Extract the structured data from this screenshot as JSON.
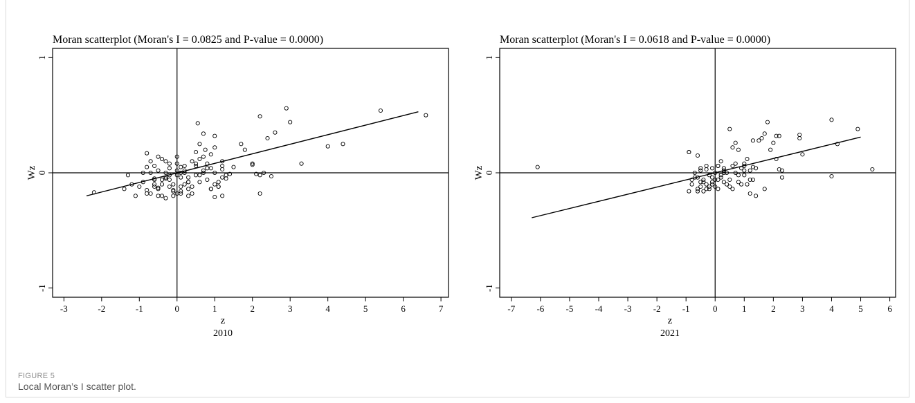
{
  "figure": {
    "label": "FIGURE 5",
    "caption": "Local Moran’s I scatter plot."
  },
  "chart_data": [
    {
      "type": "scatter",
      "title": "Moran scatterplot (Moran's I = 0.0825 and P-value = 0.0000)",
      "xlabel": "z",
      "ylabel": "Wz",
      "subtitle": "2010",
      "xlim": [
        -3.3,
        7.2
      ],
      "ylim": [
        -1.08,
        1.08
      ],
      "xticks": [
        -3,
        -2,
        -1,
        0,
        1,
        2,
        3,
        4,
        5,
        6,
        7
      ],
      "yticks": [
        -1,
        0,
        1
      ],
      "grid": false,
      "fit_line": {
        "x": [
          -2.4,
          6.4
        ],
        "y": [
          -0.2,
          0.53
        ]
      },
      "x": [
        -2.2,
        -1.4,
        -1.3,
        -1.2,
        -1.1,
        -1.0,
        -0.9,
        -0.8,
        -0.8,
        -0.7,
        -0.6,
        -0.5,
        -0.5,
        -0.4,
        -0.3,
        -0.2,
        -0.1,
        0.0,
        0.0,
        0.1,
        0.2,
        0.3,
        0.4,
        0.5,
        0.6,
        0.7,
        0.8,
        0.9,
        1.0,
        1.1,
        1.2,
        1.3,
        1.4,
        -0.9,
        -0.7,
        -0.6,
        -0.4,
        -0.3,
        -0.2,
        -0.1,
        0.0,
        0.1,
        0.2,
        0.3,
        0.4,
        0.5,
        0.6,
        -0.6,
        -0.5,
        -0.3,
        -0.2,
        -0.1,
        0.1,
        0.2,
        0.3,
        -0.8,
        -0.6,
        -0.4,
        -0.2,
        0.0,
        0.2,
        0.4,
        0.6,
        0.8,
        1.0,
        1.2,
        -0.5,
        -0.4,
        -0.2,
        0.0,
        0.1,
        0.3,
        0.5,
        0.7,
        0.9,
        1.1,
        1.3,
        -0.6,
        -0.3,
        -0.1,
        0.1,
        0.3,
        0.5,
        0.7,
        0.9,
        0.55,
        0.6,
        0.7,
        0.75,
        1.0,
        1.0,
        1.2,
        1.7,
        1.8,
        2.0,
        2.0,
        2.1,
        2.2,
        2.3,
        2.4,
        2.5,
        2.2,
        2.6,
        2.9,
        3.0,
        3.3,
        4.0,
        4.4,
        5.4,
        6.6,
        2.2,
        1.5,
        1.2,
        0.9,
        1.0,
        -0.8,
        -0.7,
        -0.5,
        -0.3,
        0.1,
        0.8,
        1.1,
        1.2
      ],
      "y": [
        -0.17,
        -0.14,
        -0.02,
        -0.1,
        -0.2,
        -0.12,
        -0.08,
        -0.15,
        0.05,
        -0.18,
        -0.05,
        -0.2,
        0.02,
        -0.1,
        -0.22,
        -0.06,
        -0.15,
        -0.02,
        -0.18,
        0.05,
        -0.1,
        -0.04,
        -0.12,
        0.08,
        -0.08,
        0.02,
        -0.06,
        -0.14,
        0.0,
        -0.12,
        0.06,
        -0.05,
        -0.01,
        0.0,
        0.1,
        -0.06,
        0.12,
        0.0,
        0.08,
        -0.16,
        0.02,
        -0.12,
        0.06,
        -0.08,
        0.1,
        -0.02,
        0.12,
        -0.1,
        -0.14,
        -0.04,
        0.04,
        -0.1,
        -0.18,
        0.02,
        -0.14,
        -0.18,
        -0.12,
        -0.06,
        -0.02,
        0.08,
        0.0,
        -0.18,
        -0.02,
        0.04,
        -0.1,
        -0.04,
        0.14,
        -0.2,
        -0.12,
        0.14,
        -0.04,
        -0.08,
        0.06,
        0.0,
        0.16,
        -0.08,
        -0.02,
        0.06,
        0.1,
        -0.2,
        -0.16,
        -0.2,
        0.18,
        0.14,
        0.04,
        0.43,
        0.25,
        0.34,
        0.2,
        0.32,
        0.22,
        0.1,
        0.25,
        0.2,
        0.07,
        0.08,
        -0.01,
        0.49,
        0.0,
        0.3,
        -0.03,
        -0.18,
        0.35,
        0.56,
        0.44,
        0.08,
        0.23,
        0.25,
        0.54,
        0.5,
        -0.02,
        0.05,
        -0.2,
        -0.14,
        -0.21,
        0.17,
        0.0,
        -0.13,
        -0.05,
        0.0,
        0.08,
        -0.12,
        0.03
      ]
    },
    {
      "type": "scatter",
      "title": "Moran scatterplot (Moran's I = 0.0618 and P-value = 0.0000)",
      "xlabel": "z",
      "ylabel": "Wz",
      "subtitle": "2021",
      "xlim": [
        -7.4,
        6.2
      ],
      "ylim": [
        -1.08,
        1.08
      ],
      "xticks": [
        -7,
        -6,
        -5,
        -4,
        -3,
        -2,
        -1,
        0,
        1,
        2,
        3,
        4,
        5,
        6
      ],
      "yticks": [
        -1,
        0,
        1
      ],
      "grid": false,
      "fit_line": {
        "x": [
          -6.3,
          5.0
        ],
        "y": [
          -0.39,
          0.31
        ]
      },
      "x": [
        -6.1,
        -0.9,
        -0.9,
        -0.8,
        -0.7,
        -0.6,
        -0.6,
        -0.5,
        -0.5,
        -0.4,
        -0.4,
        -0.3,
        -0.3,
        -0.2,
        -0.2,
        -0.1,
        -0.1,
        0.0,
        0.0,
        0.1,
        0.1,
        0.2,
        0.2,
        0.3,
        0.3,
        0.4,
        0.5,
        0.6,
        0.7,
        0.8,
        0.9,
        1.0,
        1.1,
        1.2,
        1.3,
        1.4,
        -0.8,
        -0.6,
        -0.4,
        -0.2,
        0.0,
        0.2,
        0.4,
        0.6,
        0.8,
        1.0,
        1.2,
        -0.7,
        -0.5,
        -0.3,
        -0.1,
        0.1,
        0.3,
        0.5,
        0.7,
        0.9,
        -0.5,
        -0.3,
        -0.1,
        0.1,
        0.3,
        -0.9,
        -0.6,
        0.5,
        0.6,
        0.7,
        0.8,
        1.0,
        1.1,
        1.3,
        1.5,
        1.6,
        1.7,
        1.8,
        1.9,
        2.0,
        2.1,
        2.2,
        2.2,
        2.3,
        2.9,
        2.9,
        3.0,
        4.0,
        4.0,
        4.2,
        4.9,
        5.4,
        1.4,
        1.2,
        1.7,
        2.1,
        2.3,
        1.3,
        1.0
      ],
      "y": [
        0.05,
        -0.16,
        0.18,
        -0.1,
        0.0,
        -0.14,
        -0.04,
        -0.12,
        0.04,
        -0.16,
        -0.06,
        0.06,
        -0.1,
        -0.02,
        -0.14,
        0.04,
        -0.08,
        0.0,
        -0.12,
        0.06,
        -0.06,
        0.1,
        -0.02,
        -0.08,
        0.04,
        0.0,
        -0.12,
        0.06,
        0.0,
        -0.08,
        0.04,
        -0.02,
        -0.1,
        0.02,
        -0.06,
        0.04,
        -0.06,
        -0.16,
        -0.08,
        -0.12,
        -0.06,
        -0.04,
        -0.1,
        -0.14,
        -0.02,
        0.02,
        -0.18,
        -0.04,
        -0.08,
        -0.14,
        -0.1,
        -0.14,
        0.0,
        -0.06,
        0.08,
        -0.1,
        0.02,
        0.03,
        -0.04,
        0.06,
        0.02,
        0.18,
        0.15,
        0.38,
        0.22,
        0.26,
        0.2,
        0.06,
        0.12,
        0.28,
        0.28,
        0.3,
        0.34,
        0.44,
        0.2,
        0.26,
        0.32,
        0.32,
        0.03,
        -0.04,
        0.33,
        0.3,
        0.16,
        0.46,
        -0.03,
        0.25,
        0.38,
        0.03,
        -0.2,
        -0.06,
        -0.14,
        0.12,
        0.02,
        0.05,
        0.08
      ]
    }
  ]
}
